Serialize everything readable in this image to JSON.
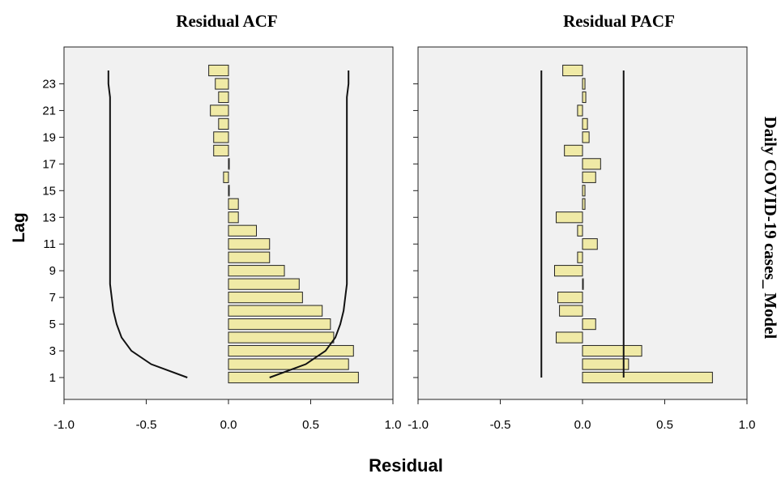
{
  "chart_data": {
    "type": "bar",
    "orientation": "horizontal",
    "ylabel": "Lag",
    "xlabel": "Residual",
    "side_label": "Daily COVID-19 cases_ Model",
    "lags": [
      1,
      2,
      3,
      4,
      5,
      6,
      7,
      8,
      9,
      10,
      11,
      12,
      13,
      14,
      15,
      16,
      17,
      18,
      19,
      20,
      21,
      22,
      23,
      24
    ],
    "y_tick_labels": [
      "1",
      "3",
      "5",
      "7",
      "9",
      "11",
      "13",
      "15",
      "17",
      "19",
      "21",
      "23"
    ],
    "x_tick_labels": [
      "-1.0",
      "-0.5",
      "0.0",
      "0.5",
      "1.0"
    ],
    "xlim": [
      -1.0,
      1.0
    ],
    "grid": false,
    "panels": [
      {
        "title": "Residual ACF",
        "values": [
          0.79,
          0.73,
          0.76,
          0.64,
          0.62,
          0.57,
          0.45,
          0.43,
          0.34,
          0.25,
          0.25,
          0.17,
          0.06,
          0.06,
          0.005,
          -0.03,
          0.005,
          -0.09,
          -0.09,
          -0.06,
          -0.11,
          -0.06,
          -0.08,
          -0.12
        ],
        "confidence_upper": [
          0.25,
          0.47,
          0.59,
          0.65,
          0.68,
          0.7,
          0.71,
          0.72,
          0.72,
          0.72,
          0.72,
          0.72,
          0.72,
          0.72,
          0.72,
          0.72,
          0.72,
          0.72,
          0.72,
          0.72,
          0.72,
          0.72,
          0.73,
          0.73
        ],
        "confidence_lower": [
          -0.25,
          -0.47,
          -0.59,
          -0.65,
          -0.68,
          -0.7,
          -0.71,
          -0.72,
          -0.72,
          -0.72,
          -0.72,
          -0.72,
          -0.72,
          -0.72,
          -0.72,
          -0.72,
          -0.72,
          -0.72,
          -0.72,
          -0.72,
          -0.72,
          -0.72,
          -0.73,
          -0.73
        ]
      },
      {
        "title": "Residual PACF",
        "values": [
          0.79,
          0.28,
          0.36,
          -0.16,
          0.08,
          -0.14,
          -0.15,
          0.005,
          -0.17,
          -0.03,
          0.09,
          -0.03,
          -0.16,
          0.015,
          0.015,
          0.08,
          0.11,
          -0.11,
          0.04,
          0.03,
          -0.03,
          0.02,
          0.015,
          -0.12
        ],
        "confidence_upper": [
          0.25,
          0.25,
          0.25,
          0.25,
          0.25,
          0.25,
          0.25,
          0.25,
          0.25,
          0.25,
          0.25,
          0.25,
          0.25,
          0.25,
          0.25,
          0.25,
          0.25,
          0.25,
          0.25,
          0.25,
          0.25,
          0.25,
          0.25,
          0.25
        ],
        "confidence_lower": [
          -0.25,
          -0.25,
          -0.25,
          -0.25,
          -0.25,
          -0.25,
          -0.25,
          -0.25,
          -0.25,
          -0.25,
          -0.25,
          -0.25,
          -0.25,
          -0.25,
          -0.25,
          -0.25,
          -0.25,
          -0.25,
          -0.25,
          -0.25,
          -0.25,
          -0.25,
          -0.25,
          -0.25
        ]
      }
    ],
    "colors": {
      "bar_fill": "#f0eaa6",
      "plot_background": "#f1f1f1",
      "line": "#111111"
    }
  }
}
